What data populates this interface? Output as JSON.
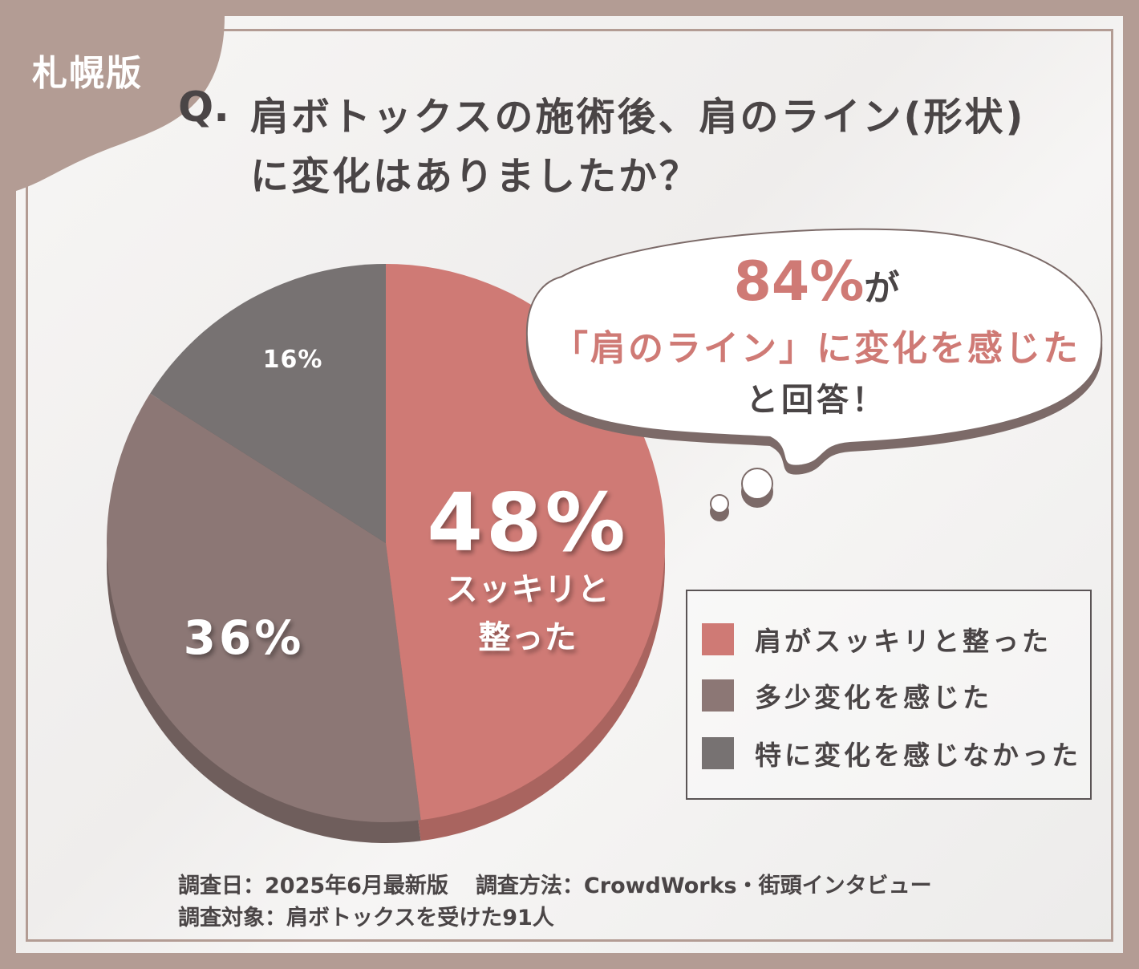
{
  "region_label": "札幌版",
  "title": {
    "q_mark": "Q.",
    "line1": "肩ボトックスの施術後、肩のライン(形状)",
    "line2": "に変化はありましたか？"
  },
  "callout": {
    "percent": "84%",
    "particle": "が",
    "line2": "「肩のライン」に変化を感じた",
    "line3": "と回答！"
  },
  "chart_data": {
    "type": "pie",
    "series": [
      {
        "name": "肩がスッキリと整った",
        "value": 48,
        "label": "48%",
        "sub_label_1": "スッキリと",
        "sub_label_2": "整った",
        "color": "#cf7a75"
      },
      {
        "name": "多少変化を感じた",
        "value": 36,
        "label": "36%",
        "color": "#8c7775"
      },
      {
        "name": "特に変化を感じなかった",
        "value": 16,
        "label": "16%",
        "color": "#777272"
      }
    ],
    "legend_position": "right"
  },
  "footer": {
    "date": "調査日：2025年6月最新版",
    "method": "調査方法：CrowdWorks・街頭インタビュー",
    "target": "調査対象：肩ボトックスを受けた91人"
  }
}
